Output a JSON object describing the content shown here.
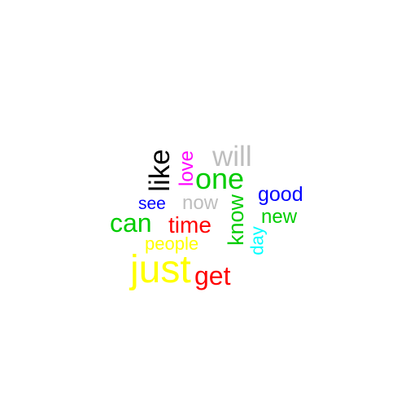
{
  "words": {
    "just": {
      "text": "just",
      "color": "#ffff00"
    },
    "like": {
      "text": "like",
      "color": "#000000"
    },
    "one": {
      "text": "one",
      "color": "#00cc00"
    },
    "will": {
      "text": "will",
      "color": "#bebebe"
    },
    "love": {
      "text": "love",
      "color": "#ff00ff"
    },
    "good": {
      "text": "good",
      "color": "#0000ff"
    },
    "see": {
      "text": "see",
      "color": "#0000ff"
    },
    "now": {
      "text": "now",
      "color": "#bebebe"
    },
    "can": {
      "text": "can",
      "color": "#00cc00"
    },
    "time": {
      "text": "time",
      "color": "#ff0000"
    },
    "know": {
      "text": "know",
      "color": "#00cc00"
    },
    "new": {
      "text": "new",
      "color": "#00cc00"
    },
    "day": {
      "text": "day",
      "color": "#00ffff"
    },
    "people": {
      "text": "people",
      "color": "#ffff00"
    },
    "get": {
      "text": "get",
      "color": "#ff0000"
    }
  }
}
